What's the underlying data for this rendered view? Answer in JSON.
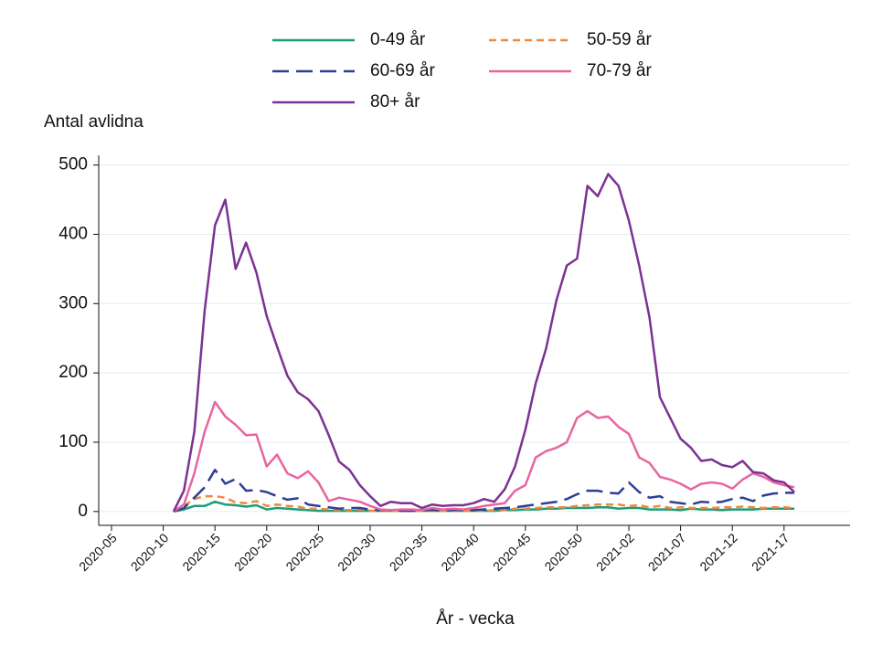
{
  "chart_data": {
    "type": "line",
    "y_label": "Antal avlidna",
    "x_label": "År - vecka",
    "categories": [
      "2020-05",
      null,
      null,
      null,
      null,
      "2020-10",
      null,
      null,
      null,
      null,
      "2020-15",
      null,
      null,
      null,
      null,
      "2020-20",
      null,
      null,
      null,
      null,
      "2020-25",
      null,
      null,
      null,
      null,
      "2020-30",
      null,
      null,
      null,
      null,
      "2020-35",
      null,
      null,
      null,
      null,
      "2020-40",
      null,
      null,
      null,
      null,
      "2020-45",
      null,
      null,
      null,
      null,
      "2020-50",
      null,
      null,
      null,
      null,
      "2021-02",
      null,
      null,
      null,
      null,
      "2021-07",
      null,
      null,
      null,
      null,
      "2021-12",
      null,
      null,
      null,
      null,
      "2021-17",
      null
    ],
    "series": [
      {
        "name": "0-49 år",
        "color": "#1b9e77",
        "style": "solid",
        "values": [
          null,
          null,
          null,
          null,
          null,
          null,
          0,
          3,
          8,
          8,
          14,
          10,
          9,
          7,
          9,
          3,
          5,
          4,
          3,
          2,
          1,
          1,
          1,
          1,
          1,
          1,
          1,
          1,
          1,
          1,
          1,
          1,
          1,
          1,
          1,
          1,
          1,
          1,
          2,
          2,
          3,
          3,
          4,
          4,
          5,
          5,
          5,
          6,
          6,
          4,
          5,
          5,
          3,
          3,
          3,
          2,
          4,
          3,
          3,
          2,
          3,
          3,
          3,
          4,
          4,
          4,
          4
        ]
      },
      {
        "name": "50-59 år",
        "color": "#f0883e",
        "style": "short",
        "values": [
          null,
          null,
          null,
          null,
          null,
          null,
          0,
          8,
          18,
          22,
          22,
          20,
          13,
          12,
          15,
          8,
          10,
          8,
          7,
          4,
          4,
          3,
          2,
          2,
          3,
          1,
          1,
          1,
          1,
          1,
          1,
          1,
          1,
          1,
          1,
          1,
          1,
          2,
          2,
          4,
          4,
          5,
          6,
          6,
          6,
          8,
          9,
          10,
          10,
          10,
          8,
          9,
          6,
          8,
          5,
          6,
          5,
          5,
          5,
          6,
          6,
          7,
          6,
          5,
          6,
          6,
          5
        ]
      },
      {
        "name": "60-69 år",
        "color": "#2b3f95",
        "style": "long",
        "values": [
          null,
          null,
          null,
          null,
          null,
          null,
          0,
          5,
          20,
          35,
          60,
          40,
          47,
          30,
          31,
          28,
          22,
          17,
          19,
          10,
          8,
          6,
          4,
          5,
          5,
          3,
          2,
          2,
          1,
          1,
          2,
          2,
          2,
          2,
          2,
          2,
          3,
          4,
          5,
          6,
          8,
          10,
          12,
          14,
          18,
          25,
          30,
          30,
          27,
          26,
          42,
          28,
          20,
          22,
          14,
          12,
          10,
          14,
          13,
          14,
          18,
          20,
          15,
          23,
          26,
          27,
          27
        ]
      },
      {
        "name": "70-79 år",
        "color": "#e8659e",
        "style": "solid",
        "values": [
          null,
          null,
          null,
          null,
          null,
          null,
          0,
          10,
          55,
          115,
          158,
          137,
          125,
          110,
          111,
          65,
          82,
          55,
          48,
          58,
          42,
          15,
          20,
          17,
          14,
          8,
          3,
          2,
          3,
          3,
          2,
          5,
          3,
          4,
          3,
          5,
          8,
          10,
          12,
          30,
          38,
          78,
          87,
          92,
          100,
          135,
          145,
          135,
          137,
          122,
          112,
          78,
          70,
          50,
          46,
          40,
          32,
          40,
          42,
          40,
          33,
          46,
          55,
          50,
          42,
          38,
          35
        ]
      },
      {
        "name": "80+ år",
        "color": "#7b3294",
        "style": "solid",
        "values": [
          null,
          null,
          null,
          null,
          null,
          null,
          0,
          30,
          115,
          290,
          413,
          450,
          350,
          388,
          345,
          282,
          238,
          196,
          172,
          162,
          145,
          110,
          72,
          60,
          38,
          22,
          8,
          14,
          12,
          12,
          5,
          10,
          8,
          9,
          9,
          12,
          18,
          14,
          32,
          65,
          118,
          185,
          235,
          305,
          355,
          365,
          470,
          455,
          487,
          470,
          420,
          355,
          280,
          165,
          135,
          105,
          92,
          73,
          75,
          67,
          64,
          73,
          57,
          55,
          45,
          42,
          28
        ]
      }
    ],
    "ylim": [
      -20,
      514
    ],
    "yticks": [
      0,
      100,
      200,
      300,
      400,
      500
    ],
    "grid": true
  }
}
